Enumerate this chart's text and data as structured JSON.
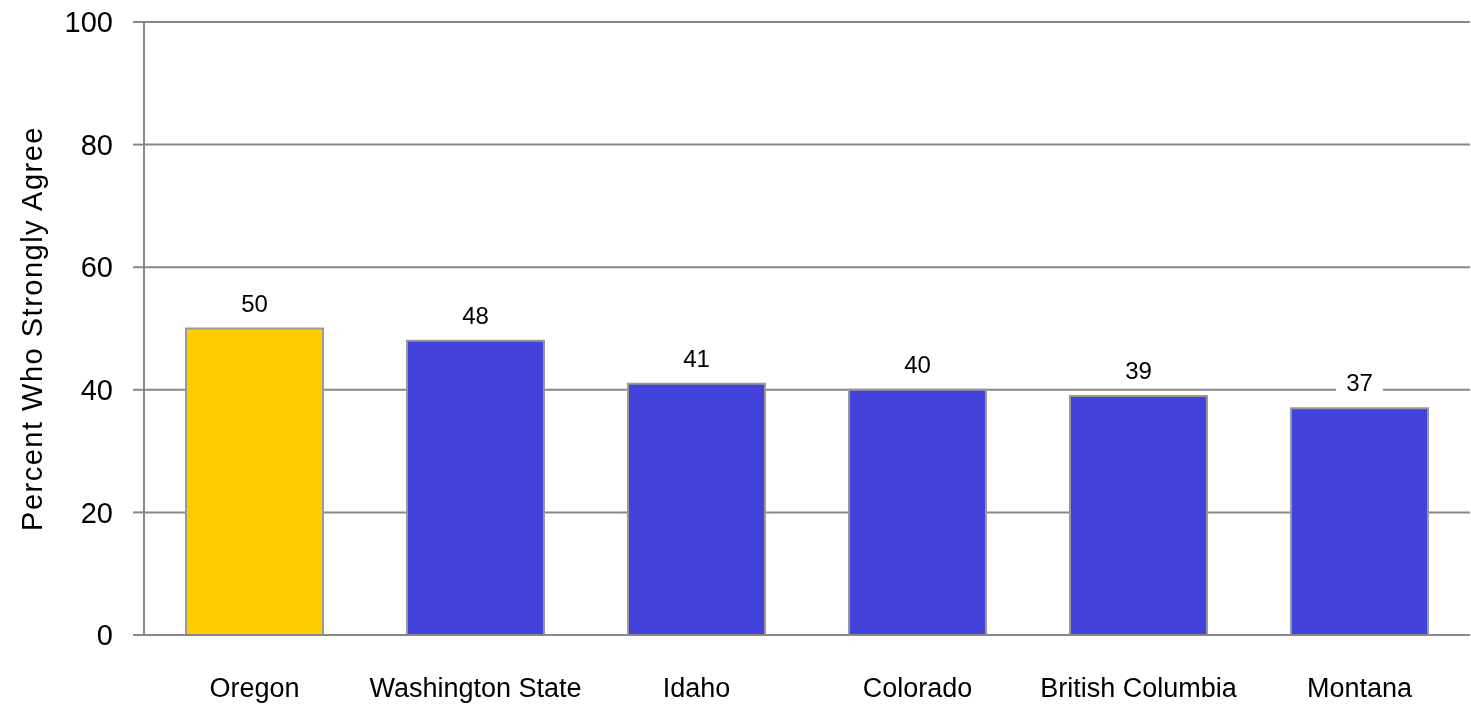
{
  "chart_data": {
    "type": "bar",
    "ylabel": "Percent Who Strongly Agree",
    "categories": [
      "Oregon",
      "Washington State",
      "Idaho",
      "Colorado",
      "British Columbia",
      "Montana"
    ],
    "values": [
      50,
      48,
      41,
      40,
      39,
      37
    ],
    "colors": [
      "#ffcc00",
      "#4343db",
      "#4343db",
      "#4343db",
      "#4343db",
      "#4343db"
    ],
    "ylim": [
      0,
      100
    ],
    "yticks": [
      0,
      20,
      40,
      60,
      80,
      100
    ],
    "grid": "y",
    "data_labels": true
  }
}
